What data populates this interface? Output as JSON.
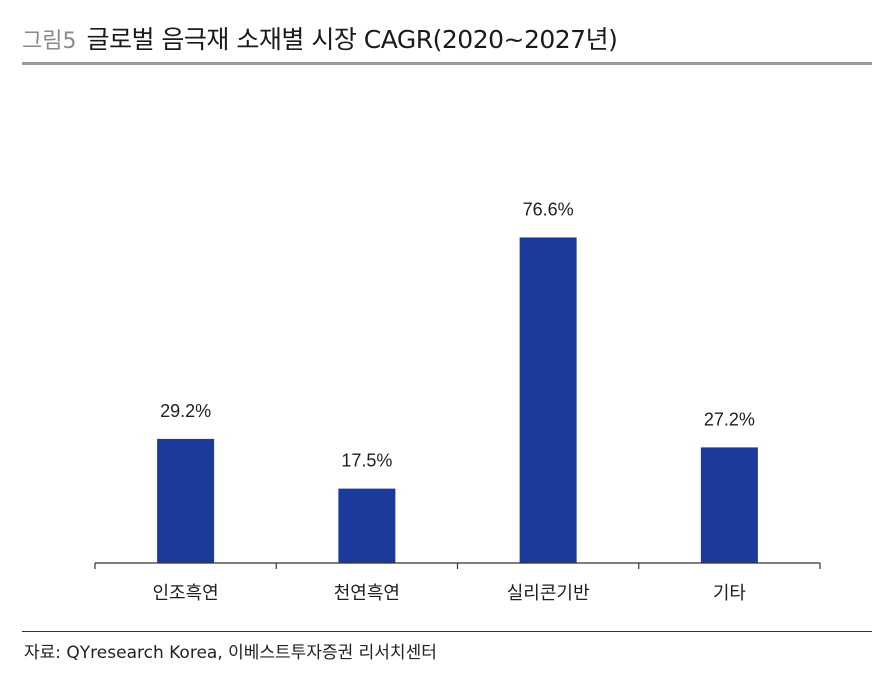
{
  "figure": {
    "label": "그림5",
    "title": "글로벌 음극재 소재별 시장 CAGR(2020~2027년)"
  },
  "source": "자료: QYresearch Korea, 이베스트투자증권 리서치센터",
  "chart_data": {
    "type": "bar",
    "title": "글로벌 음극재 소재별 시장 CAGR(2020~2027년)",
    "categories": [
      "인조흑연",
      "천연흑연",
      "실리콘기반",
      "기타"
    ],
    "values": [
      29.2,
      17.5,
      76.6,
      27.2
    ],
    "data_labels": [
      "29.2%",
      "17.5%",
      "76.6%",
      "27.2%"
    ],
    "xlabel": "",
    "ylabel": "",
    "ylim": [
      0,
      100
    ],
    "grid": false,
    "legend": "none",
    "bar_color": "#1b3a9b"
  }
}
